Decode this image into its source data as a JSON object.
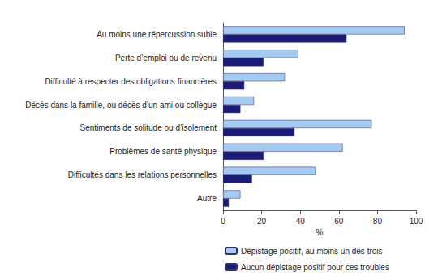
{
  "chart_data": {
    "type": "bar",
    "orientation": "horizontal",
    "categories": [
      "Au moins une répercussion subie",
      "Perte d’emploi ou de revenu",
      "Difficulté à respecter des obligations financières",
      "Décès dans la famille, ou décès d’un ami ou collègue",
      "Sentiments de solitude ou d’isolement",
      "Problèmes de santé physique",
      "Difficultés dans les relations personnelles",
      "Autre"
    ],
    "series": [
      {
        "name": "Dépistage positif, au moins un des trois",
        "color": "#a6cbf2",
        "values": [
          94,
          39,
          32,
          16,
          77,
          62,
          48,
          9
        ]
      },
      {
        "name": "Aucun dépistage positif pour ces troubles",
        "color": "#1c1c78",
        "values": [
          64,
          21,
          11,
          9,
          37,
          21,
          15,
          3
        ]
      }
    ],
    "xlabel": "%",
    "xlim": [
      0,
      100
    ],
    "xticks": [
      0,
      20,
      40,
      60,
      80,
      100
    ],
    "grid": false,
    "legend": "bottom"
  }
}
